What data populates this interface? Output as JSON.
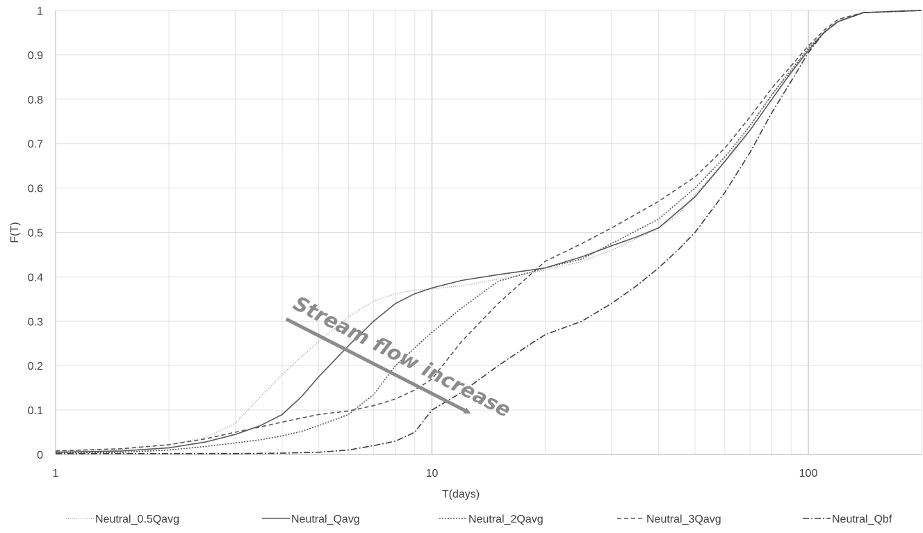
{
  "chart_data": {
    "type": "line",
    "xlabel": "T(days)",
    "ylabel": "F(T)",
    "xscale": "log",
    "xlim": [
      1,
      200
    ],
    "ylim": [
      0,
      1
    ],
    "grid": true,
    "legend_position": "bottom",
    "x_ticks": [
      "1",
      "10",
      "100"
    ],
    "y_ticks": [
      "0",
      "0.1",
      "0.2",
      "0.3",
      "0.4",
      "0.5",
      "0.6",
      "0.7",
      "0.8",
      "0.9",
      "1"
    ],
    "annotation": {
      "text": "Stream flow increase",
      "arrow_from": [
        4.1,
        0.305
      ],
      "arrow_to": [
        12.5,
        0.095
      ]
    },
    "series": [
      {
        "name": "Neutral_0.5Qavg",
        "color": "#a6a6a6",
        "dash": "1 2",
        "points": [
          [
            1,
            0.007
          ],
          [
            1.5,
            0.012
          ],
          [
            2,
            0.022
          ],
          [
            2.5,
            0.038
          ],
          [
            3,
            0.07
          ],
          [
            3.5,
            0.13
          ],
          [
            4,
            0.18
          ],
          [
            4.5,
            0.22
          ],
          [
            5,
            0.255
          ],
          [
            6,
            0.31
          ],
          [
            7,
            0.345
          ],
          [
            8,
            0.362
          ],
          [
            9,
            0.37
          ],
          [
            10,
            0.373
          ],
          [
            12,
            0.38
          ],
          [
            15,
            0.395
          ],
          [
            20,
            0.415
          ],
          [
            25,
            0.435
          ],
          [
            30,
            0.46
          ],
          [
            40,
            0.51
          ],
          [
            45,
            0.54
          ],
          [
            50,
            0.585
          ],
          [
            60,
            0.66
          ],
          [
            70,
            0.74
          ],
          [
            80,
            0.81
          ],
          [
            90,
            0.87
          ],
          [
            100,
            0.91
          ],
          [
            110,
            0.95
          ],
          [
            120,
            0.98
          ],
          [
            140,
            0.995
          ],
          [
            200,
            1.0
          ]
        ]
      },
      {
        "name": "Neutral_Qavg",
        "color": "#595959",
        "dash": "",
        "points": [
          [
            1,
            0.005
          ],
          [
            1.5,
            0.008
          ],
          [
            2,
            0.015
          ],
          [
            2.5,
            0.028
          ],
          [
            3,
            0.045
          ],
          [
            3.5,
            0.065
          ],
          [
            4,
            0.09
          ],
          [
            4.5,
            0.13
          ],
          [
            5,
            0.175
          ],
          [
            6,
            0.245
          ],
          [
            7,
            0.3
          ],
          [
            8,
            0.34
          ],
          [
            9,
            0.362
          ],
          [
            10,
            0.375
          ],
          [
            12,
            0.392
          ],
          [
            15,
            0.405
          ],
          [
            20,
            0.42
          ],
          [
            25,
            0.445
          ],
          [
            30,
            0.47
          ],
          [
            35,
            0.49
          ],
          [
            40,
            0.51
          ],
          [
            50,
            0.58
          ],
          [
            60,
            0.66
          ],
          [
            70,
            0.73
          ],
          [
            80,
            0.8
          ],
          [
            90,
            0.86
          ],
          [
            100,
            0.91
          ],
          [
            110,
            0.95
          ],
          [
            120,
            0.975
          ],
          [
            140,
            0.995
          ],
          [
            200,
            1.0
          ]
        ]
      },
      {
        "name": "Neutral_2Qavg",
        "color": "#595959",
        "dash": "2 2",
        "points": [
          [
            1,
            0.003
          ],
          [
            1.5,
            0.005
          ],
          [
            2,
            0.01
          ],
          [
            2.5,
            0.018
          ],
          [
            3,
            0.026
          ],
          [
            3.5,
            0.033
          ],
          [
            4,
            0.042
          ],
          [
            4.5,
            0.052
          ],
          [
            5,
            0.065
          ],
          [
            6,
            0.09
          ],
          [
            7,
            0.135
          ],
          [
            8,
            0.2
          ],
          [
            9,
            0.24
          ],
          [
            10,
            0.275
          ],
          [
            12,
            0.33
          ],
          [
            15,
            0.39
          ],
          [
            20,
            0.42
          ],
          [
            25,
            0.44
          ],
          [
            30,
            0.475
          ],
          [
            40,
            0.53
          ],
          [
            50,
            0.6
          ],
          [
            60,
            0.67
          ],
          [
            70,
            0.74
          ],
          [
            80,
            0.81
          ],
          [
            90,
            0.865
          ],
          [
            100,
            0.915
          ],
          [
            110,
            0.95
          ],
          [
            120,
            0.975
          ],
          [
            140,
            0.995
          ],
          [
            200,
            1.0
          ]
        ]
      },
      {
        "name": "Neutral_3Qavg",
        "color": "#595959",
        "dash": "6 4",
        "points": [
          [
            1,
            0.008
          ],
          [
            1.5,
            0.013
          ],
          [
            2,
            0.022
          ],
          [
            2.5,
            0.035
          ],
          [
            3,
            0.05
          ],
          [
            3.5,
            0.062
          ],
          [
            4,
            0.073
          ],
          [
            4.5,
            0.082
          ],
          [
            5,
            0.09
          ],
          [
            6,
            0.098
          ],
          [
            7,
            0.11
          ],
          [
            8,
            0.125
          ],
          [
            9,
            0.145
          ],
          [
            10,
            0.17
          ],
          [
            12,
            0.255
          ],
          [
            15,
            0.34
          ],
          [
            20,
            0.435
          ],
          [
            25,
            0.475
          ],
          [
            30,
            0.51
          ],
          [
            40,
            0.57
          ],
          [
            50,
            0.625
          ],
          [
            60,
            0.69
          ],
          [
            70,
            0.76
          ],
          [
            80,
            0.825
          ],
          [
            90,
            0.875
          ],
          [
            100,
            0.92
          ],
          [
            110,
            0.955
          ],
          [
            120,
            0.98
          ],
          [
            140,
            0.995
          ],
          [
            200,
            1.0
          ]
        ]
      },
      {
        "name": "Neutral_Qbf",
        "color": "#404040",
        "dash": "9 3 2 3",
        "points": [
          [
            1,
            0.002
          ],
          [
            2,
            0.002
          ],
          [
            3,
            0.002
          ],
          [
            4,
            0.003
          ],
          [
            5,
            0.005
          ],
          [
            6,
            0.01
          ],
          [
            7,
            0.02
          ],
          [
            8,
            0.03
          ],
          [
            9,
            0.05
          ],
          [
            10,
            0.1
          ],
          [
            12,
            0.14
          ],
          [
            15,
            0.2
          ],
          [
            18,
            0.245
          ],
          [
            20,
            0.27
          ],
          [
            25,
            0.3
          ],
          [
            30,
            0.34
          ],
          [
            35,
            0.38
          ],
          [
            40,
            0.42
          ],
          [
            45,
            0.46
          ],
          [
            50,
            0.5
          ],
          [
            60,
            0.59
          ],
          [
            70,
            0.68
          ],
          [
            80,
            0.77
          ],
          [
            90,
            0.84
          ],
          [
            100,
            0.905
          ],
          [
            110,
            0.95
          ],
          [
            120,
            0.975
          ],
          [
            140,
            0.995
          ],
          [
            200,
            1.0
          ]
        ]
      }
    ]
  }
}
